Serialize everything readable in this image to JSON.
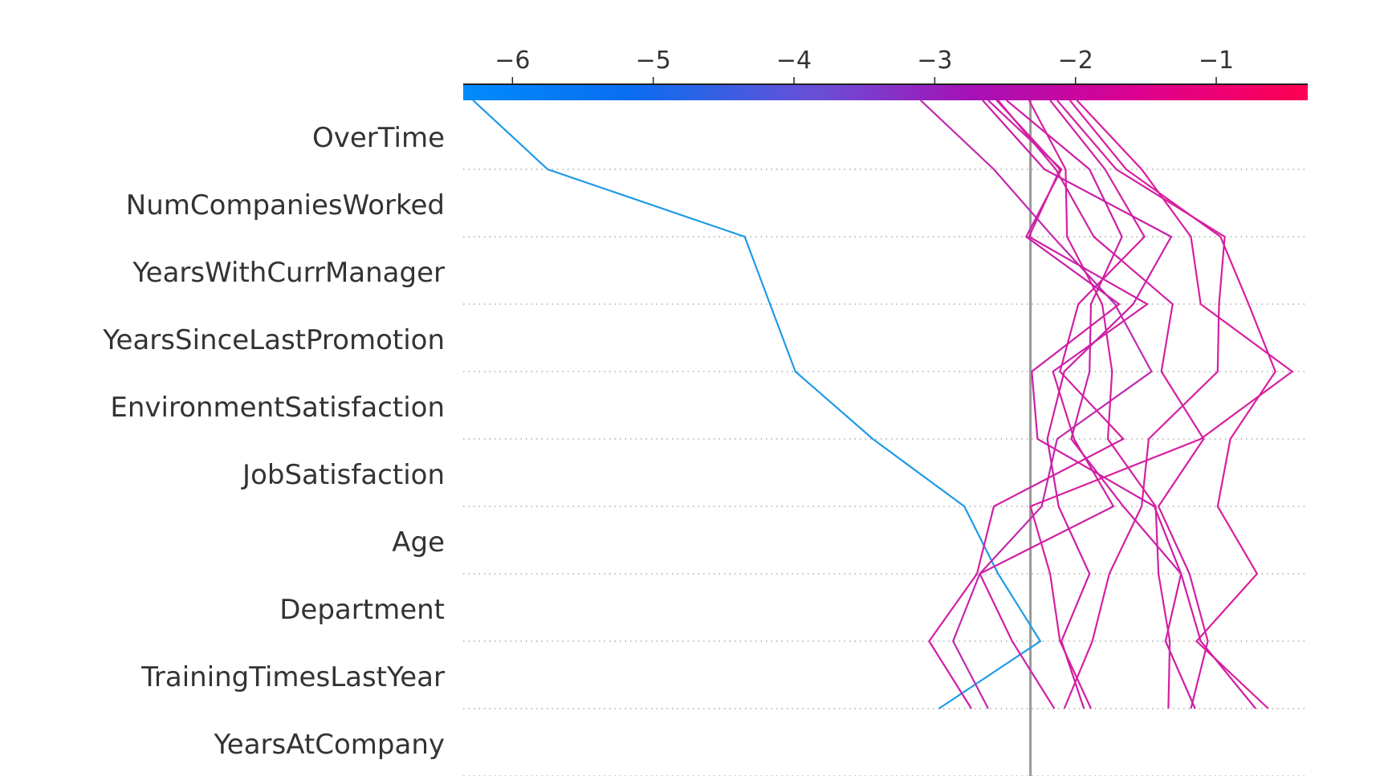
{
  "chart_data": {
    "type": "line",
    "subtype": "shap-decision-plot",
    "title": "",
    "xlabel": "",
    "ylabel": "",
    "xlim": [
      -6.35,
      -0.35
    ],
    "x_ticks": [
      -6,
      -5,
      -4,
      -3,
      -2,
      -1
    ],
    "x_tick_labels": [
      "−6",
      "−5",
      "−4",
      "−3",
      "−2",
      "−1"
    ],
    "base_value": -2.32,
    "features": [
      "OverTime",
      "NumCompaniesWorked",
      "YearsWithCurrManager",
      "YearsSinceLastPromotion",
      "EnvironmentSatisfaction",
      "JobSatisfaction",
      "Age",
      "Department",
      "TrainingTimesLastYear",
      "YearsAtCompany"
    ],
    "colorbar": {
      "colors": [
        "#008bfb",
        "#6a4fd6",
        "#b100b8",
        "#ff0052"
      ],
      "range": [
        -6.35,
        -0.35
      ]
    },
    "grid": "dotted-horizontal",
    "series": [
      {
        "color": "#1e9ae8",
        "values": [
          -6.28,
          -5.75,
          -4.35,
          -4.17,
          -3.99,
          -3.44,
          -2.79,
          -2.55,
          -2.25,
          -2.97
        ]
      },
      {
        "color": "#c02aae",
        "values": [
          -3.1,
          -2.58,
          -2.16,
          -1.72,
          -1.46,
          -2.13,
          -2.24,
          -2.68,
          -2.87,
          -2.62
        ]
      },
      {
        "color": "#cc1fa6",
        "values": [
          -2.66,
          -2.22,
          -1.32,
          -1.59,
          -2.08,
          -2.2,
          -2.12,
          -1.9,
          -2.1,
          -1.94
        ]
      },
      {
        "color": "#cc1fa6",
        "values": [
          -2.62,
          -2.1,
          -2.35,
          -1.69,
          -2.31,
          -2.27,
          -1.44,
          -1.25,
          -1.11,
          -0.72
        ]
      },
      {
        "color": "#d020a4",
        "values": [
          -2.56,
          -2.11,
          -2.33,
          -1.49,
          -2.16,
          -2.01,
          -1.73,
          -2.68,
          -2.45,
          -2.15
        ]
      },
      {
        "color": "#d220a3",
        "values": [
          -2.55,
          -2.14,
          -1.87,
          -1.31,
          -1.39,
          -1.09,
          -1.41,
          -1.19,
          -1.06,
          -1.18
        ]
      },
      {
        "color": "#cc1fa6",
        "values": [
          -2.49,
          -1.9,
          -1.67,
          -1.89,
          -1.9,
          -2.03,
          -1.66,
          -1.25,
          -1.36,
          -1.15
        ]
      },
      {
        "color": "#d420a2",
        "values": [
          -2.33,
          -2.07,
          -2.06,
          -1.81,
          -1.74,
          -1.77,
          -1.43,
          -1.41,
          -1.33,
          -1.34
        ]
      },
      {
        "color": "#d21fa3",
        "values": [
          -2.18,
          -1.79,
          -1.51,
          -1.98,
          -2.11,
          -1.66,
          -2.58,
          -2.7,
          -3.04,
          -2.74
        ]
      },
      {
        "color": "#d520a1",
        "values": [
          -2.13,
          -1.71,
          -0.94,
          -0.98,
          -0.99,
          -1.48,
          -1.53,
          -1.76,
          -1.88,
          -2.08
        ]
      },
      {
        "color": "#da1e9d",
        "values": [
          -2.04,
          -1.64,
          -0.97,
          -0.77,
          -0.58,
          -0.9,
          -0.99,
          -0.71,
          -1.14,
          -0.63
        ]
      },
      {
        "color": "#d81f9f",
        "values": [
          -1.99,
          -1.53,
          -1.18,
          -1.11,
          -0.46,
          -1.11,
          -2.32,
          -2.18,
          -2.11,
          -1.89
        ]
      }
    ]
  }
}
